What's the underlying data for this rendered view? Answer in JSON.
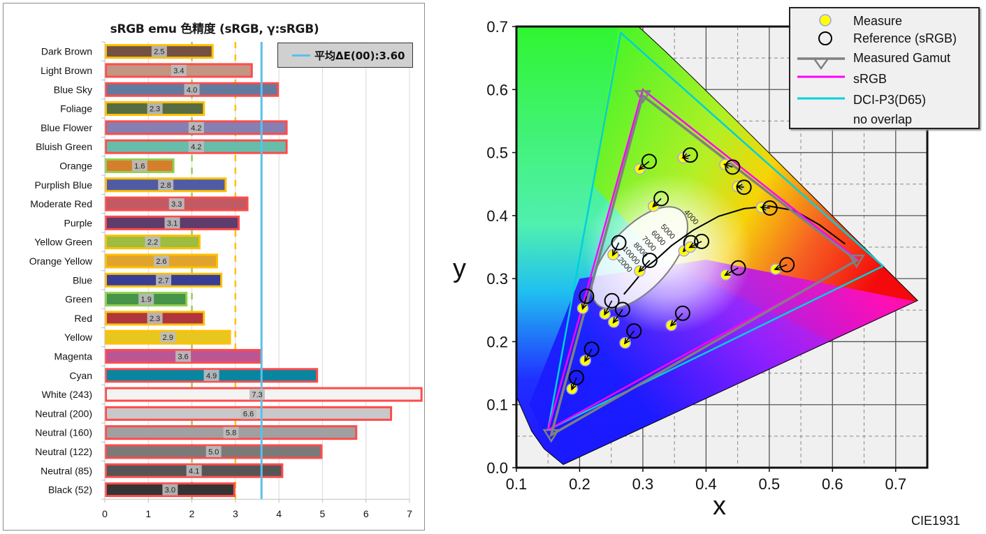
{
  "chart_data": [
    {
      "type": "bar",
      "orientation": "horizontal",
      "title": "sRGB emu 色精度 (sRGB, γ:sRGB)",
      "xlabel": "",
      "ylabel": "",
      "xlim": [
        0,
        7
      ],
      "xticks": [
        "0",
        "1",
        "2",
        "3",
        "4",
        "5",
        "6",
        "7"
      ],
      "grid": true,
      "legend": {
        "position": "top-right",
        "entries": [
          {
            "label": "平均ΔE(00):3.60",
            "color": "#5bc0eb"
          }
        ]
      },
      "average_line": {
        "value": 3.6,
        "color": "#5bc0eb"
      },
      "threshold_lines": [
        {
          "value": 2,
          "color": "#92d050",
          "style": "dashed"
        },
        {
          "value": 3,
          "color": "#ffc000",
          "style": "dashed"
        }
      ],
      "categories": [
        "Dark Brown",
        "Light Brown",
        "Blue Sky",
        "Foliage",
        "Blue Flower",
        "Bluish Green",
        "Orange",
        "Purplish Blue",
        "Moderate Red",
        "Purple",
        "Yellow Green",
        "Orange Yellow",
        "Blue",
        "Green",
        "Red",
        "Yellow",
        "Magenta",
        "Cyan",
        "White (243)",
        "Neutral (200)",
        "Neutral (160)",
        "Neutral (122)",
        "Neutral (85)",
        "Black (52)"
      ],
      "values": [
        2.5,
        3.4,
        4.0,
        2.3,
        4.2,
        4.2,
        1.6,
        2.8,
        3.3,
        3.1,
        2.2,
        2.6,
        2.7,
        1.9,
        2.3,
        2.9,
        3.6,
        4.9,
        7.3,
        6.6,
        5.8,
        5.0,
        4.1,
        3.0
      ],
      "labels": [
        "2.5",
        "3.4",
        "4.0",
        "2.3",
        "4.2",
        "4.2",
        "1.6",
        "2.8",
        "3.3",
        "3.1",
        "2.2",
        "2.6",
        "2.7",
        "1.9",
        "2.3",
        "2.9",
        "3.6",
        "4.9",
        "7.3",
        "6.6",
        "5.8",
        "5.0",
        "4.1",
        "3.0"
      ],
      "fill_colors": [
        "#735244",
        "#c29682",
        "#627a9d",
        "#576c43",
        "#8580b1",
        "#67bdaa",
        "#d67e2c",
        "#505ba6",
        "#c15a63",
        "#5e3c6c",
        "#9dbc40",
        "#e0a32e",
        "#383d96",
        "#469449",
        "#af363c",
        "#e7c71f",
        "#bb5695",
        "#0885a1",
        "#f3f3f2",
        "#c8c8c8",
        "#a0a0a0",
        "#7a7a79",
        "#555555",
        "#343434"
      ],
      "outline_colors": [
        "#ffc000",
        "#ff4b4b",
        "#ff4b4b",
        "#ffc000",
        "#ff4b4b",
        "#ff4b4b",
        "#92d050",
        "#ffc000",
        "#ff4b4b",
        "#ff4b4b",
        "#ffc000",
        "#ffc000",
        "#ffc000",
        "#92d050",
        "#ffc000",
        "#ffc000",
        "#ff4b4b",
        "#ff4b4b",
        "#ff4b4b",
        "#ff4b4b",
        "#ff4b4b",
        "#ff4b4b",
        "#ff4b4b",
        "#ff4b4b"
      ]
    },
    {
      "type": "scatter",
      "title": "",
      "subtitle": "CIE1931",
      "xlabel": "x",
      "ylabel": "y",
      "xlim": [
        0.1,
        0.75
      ],
      "ylim": [
        0.0,
        0.7
      ],
      "xticks": [
        "0.1",
        "0.2",
        "0.3",
        "0.4",
        "0.5",
        "0.6",
        "0.7"
      ],
      "yticks": [
        "0.0",
        "0.1",
        "0.2",
        "0.3",
        "0.4",
        "0.5",
        "0.6",
        "0.7"
      ],
      "grid": true,
      "legend": {
        "position": "top-right",
        "entries": [
          {
            "label": "Measure",
            "marker": "yellow-dot",
            "color": "#ffff00"
          },
          {
            "label": "Reference (sRGB)",
            "marker": "open-circle",
            "color": "#000000"
          },
          {
            "label": "Measured Gamut",
            "marker": "triangle-line",
            "color": "#808080"
          },
          {
            "label": "sRGB",
            "marker": "line",
            "color": "#ff00ff"
          },
          {
            "label": "DCI-P3(D65)",
            "marker": "line",
            "color": "#00d0d8"
          },
          {
            "label": "no overlap",
            "marker": "none",
            "color": ""
          }
        ]
      },
      "gamuts": {
        "measured": [
          [
            0.3,
            0.59
          ],
          [
            0.638,
            0.329
          ],
          [
            0.155,
            0.052
          ]
        ],
        "srgb": [
          [
            0.3,
            0.6
          ],
          [
            0.64,
            0.33
          ],
          [
            0.15,
            0.06
          ]
        ],
        "dci_p3": [
          [
            0.265,
            0.69
          ],
          [
            0.68,
            0.32
          ],
          [
            0.15,
            0.06
          ]
        ]
      },
      "cct_labels": [
        "4000",
        "5000",
        "6000",
        "7000",
        "8000",
        "10000",
        "12000"
      ],
      "points": [
        {
          "measure": [
            0.295,
            0.474
          ],
          "reference": [
            0.31,
            0.486
          ]
        },
        {
          "measure": [
            0.364,
            0.492
          ],
          "reference": [
            0.375,
            0.496
          ]
        },
        {
          "measure": [
            0.43,
            0.481
          ],
          "reference": [
            0.442,
            0.477
          ]
        },
        {
          "measure": [
            0.45,
            0.446
          ],
          "reference": [
            0.46,
            0.445
          ]
        },
        {
          "measure": [
            0.488,
            0.413
          ],
          "reference": [
            0.501,
            0.412
          ]
        },
        {
          "measure": [
            0.317,
            0.415
          ],
          "reference": [
            0.329,
            0.427
          ]
        },
        {
          "measure": [
            0.253,
            0.338
          ],
          "reference": [
            0.262,
            0.357
          ]
        },
        {
          "measure": [
            0.365,
            0.344
          ],
          "reference": [
            0.376,
            0.357
          ]
        },
        {
          "measure": [
            0.375,
            0.35
          ],
          "reference": [
            0.393,
            0.359
          ]
        },
        {
          "measure": [
            0.295,
            0.312
          ],
          "reference": [
            0.311,
            0.329
          ]
        },
        {
          "measure": [
            0.431,
            0.306
          ],
          "reference": [
            0.451,
            0.317
          ]
        },
        {
          "measure": [
            0.51,
            0.315
          ],
          "reference": [
            0.528,
            0.322
          ]
        },
        {
          "measure": [
            0.205,
            0.253
          ],
          "reference": [
            0.211,
            0.272
          ]
        },
        {
          "measure": [
            0.24,
            0.244
          ],
          "reference": [
            0.251,
            0.265
          ]
        },
        {
          "measure": [
            0.254,
            0.231
          ],
          "reference": [
            0.268,
            0.251
          ]
        },
        {
          "measure": [
            0.345,
            0.226
          ],
          "reference": [
            0.363,
            0.245
          ]
        },
        {
          "measure": [
            0.272,
            0.198
          ],
          "reference": [
            0.286,
            0.217
          ]
        },
        {
          "measure": [
            0.209,
            0.17
          ],
          "reference": [
            0.219,
            0.188
          ]
        },
        {
          "measure": [
            0.188,
            0.125
          ],
          "reference": [
            0.195,
            0.143
          ]
        }
      ]
    }
  ]
}
